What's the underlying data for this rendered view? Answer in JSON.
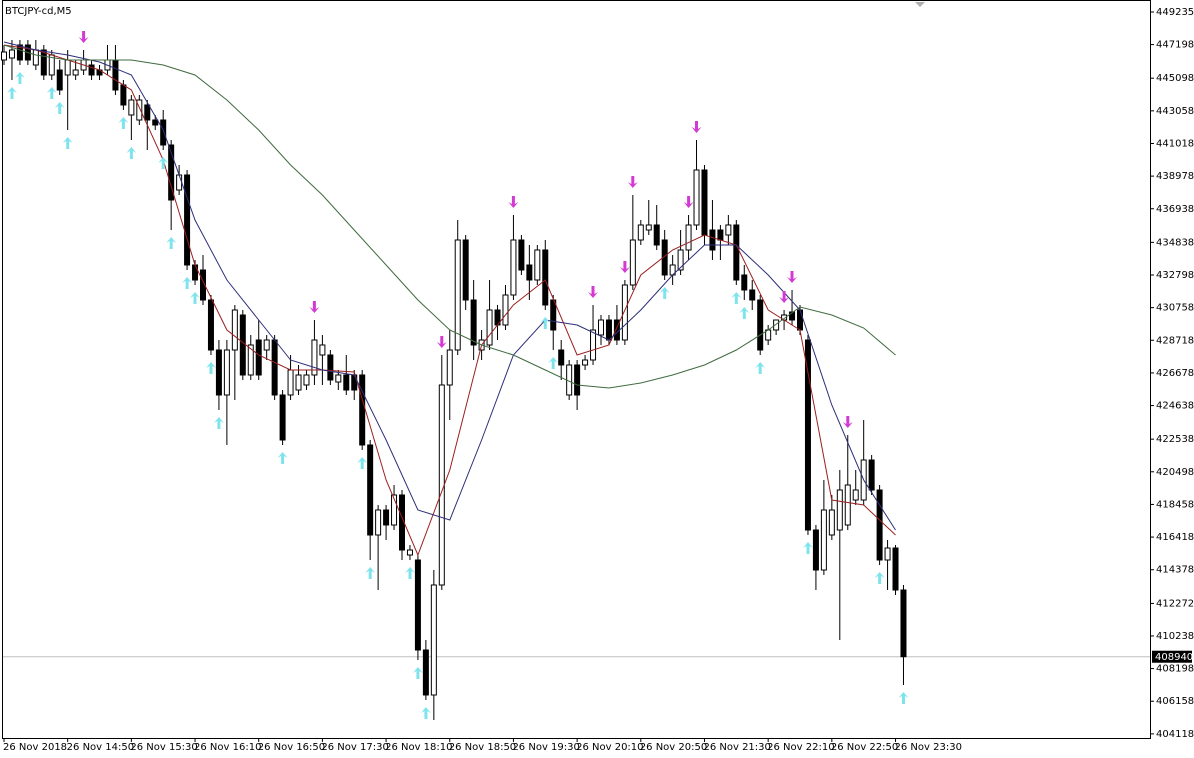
{
  "chart_data": {
    "type": "candlestick",
    "title": "BTCJPY-cd,M5",
    "categories": [
      "26 Nov 2018",
      null,
      null,
      null,
      null,
      null,
      null,
      null,
      "26 Nov 14:50",
      null,
      null,
      null,
      null,
      null,
      null,
      null,
      "26 Nov 15:30",
      null,
      null,
      null,
      null,
      null,
      null,
      null,
      "26 Nov 16:10",
      null,
      null,
      null,
      null,
      null,
      null,
      null,
      "26 Nov 16:50",
      null,
      null,
      null,
      null,
      null,
      null,
      null,
      "26 Nov 17:30",
      null,
      null,
      null,
      null,
      null,
      null,
      null,
      "26 Nov 18:10",
      null,
      null,
      null,
      null,
      null,
      null,
      null,
      "26 Nov 18:50",
      null,
      null,
      null,
      null,
      null,
      null,
      null,
      "26 Nov 19:30",
      null,
      null,
      null,
      null,
      null,
      null,
      null,
      "26 Nov 20:10",
      null,
      null,
      null,
      null,
      null,
      null,
      null,
      "26 Nov 20:50",
      null,
      null,
      null,
      null,
      null,
      null,
      null,
      "26 Nov 21:30",
      null,
      null,
      null,
      null,
      null,
      null,
      null,
      "26 Nov 22:10",
      null,
      null,
      null,
      null,
      null,
      null,
      null,
      "26 Nov 22:50",
      null,
      null,
      null,
      null,
      null,
      null,
      null,
      "26 Nov 23:30",
      null
    ],
    "open": [
      446235,
      446360,
      447173,
      447173,
      445923,
      446860,
      445298,
      445610,
      445298,
      445298,
      445610,
      445923,
      445610,
      445610,
      446235,
      444673,
      442798,
      442485,
      443423,
      442485,
      442485,
      440923,
      438110,
      439048,
      433423,
      433110,
      431235,
      428110,
      425298,
      428110,
      430298,
      426548,
      428735,
      428110,
      428735,
      425298,
      425298,
      425610,
      425923,
      426548,
      427798,
      427798,
      426110,
      426548,
      426548,
      426548,
      422173,
      416548,
      418110,
      417173,
      419048,
      415298,
      414985,
      409360,
      406548,
      413423,
      425923,
      428110,
      434985,
      431235,
      428110,
      428423,
      430610,
      429673,
      431548,
      434985,
      433423,
      432485,
      434360,
      431235,
      428110,
      425298,
      427173,
      427173,
      427485,
      429048,
      429985,
      429985,
      428735,
      432173,
      434985,
      435610,
      435923,
      434985,
      432798,
      433110,
      434360,
      435923,
      439360,
      435610,
      435610,
      435298,
      435923,
      432798,
      431860,
      431235,
      428735,
      429360,
      429985,
      430485,
      430610,
      428735,
      416860,
      414360,
      416548,
      416860,
      417173,
      418735,
      418735,
      421235,
      419360,
      414985,
      415735,
      413110
    ],
    "high": [
      447173,
      447485,
      447485,
      447485,
      447485,
      447173,
      446860,
      446235,
      446860,
      446235,
      446860,
      446235,
      445923,
      447173,
      447173,
      444985,
      444048,
      444048,
      443735,
      442798,
      443110,
      441235,
      439673,
      439360,
      433735,
      434048,
      431548,
      428735,
      428735,
      430923,
      430610,
      429048,
      429985,
      429048,
      429048,
      425610,
      427798,
      427173,
      426860,
      429985,
      429048,
      428110,
      426860,
      427798,
      426860,
      426860,
      422485,
      418423,
      418423,
      419673,
      419360,
      415923,
      415298,
      409985,
      414360,
      427798,
      429360,
      436235,
      435298,
      432485,
      429360,
      432485,
      430923,
      432173,
      436548,
      435298,
      434673,
      434673,
      434985,
      431548,
      428735,
      427485,
      427485,
      427798,
      430923,
      430298,
      430298,
      430923,
      432485,
      437798,
      436235,
      437485,
      437173,
      435610,
      434048,
      435610,
      436548,
      441235,
      439673,
      437485,
      435923,
      436548,
      436235,
      433423,
      432485,
      431548,
      429673,
      429985,
      430610,
      431860,
      430923,
      429048,
      417173,
      419985,
      419048,
      420610,
      422798,
      420610,
      423735,
      421548,
      419673,
      416235,
      415923,
      413423
    ],
    "low": [
      445923,
      444985,
      445923,
      445923,
      445610,
      444985,
      444985,
      444048,
      441860,
      444985,
      445298,
      444985,
      444985,
      445298,
      444048,
      443110,
      441235,
      442173,
      440610,
      441860,
      440610,
      435610,
      437798,
      433110,
      432173,
      430923,
      427798,
      424360,
      422173,
      424985,
      426235,
      426235,
      426235,
      427485,
      424985,
      422173,
      424985,
      425298,
      425610,
      425923,
      425923,
      425923,
      425610,
      425298,
      424985,
      421860,
      414985,
      413110,
      416235,
      416860,
      414985,
      414985,
      408735,
      406235,
      404985,
      413110,
      423735,
      427798,
      430610,
      427485,
      427485,
      428110,
      428735,
      429360,
      431235,
      432798,
      431235,
      432173,
      430610,
      428110,
      426235,
      424985,
      424360,
      426860,
      427173,
      428423,
      428423,
      428423,
      428423,
      431860,
      434673,
      435298,
      434360,
      432485,
      432173,
      432798,
      433735,
      435610,
      434673,
      433735,
      433735,
      434673,
      432173,
      431235,
      430610,
      427798,
      428423,
      429048,
      429360,
      429673,
      429048,
      416548,
      413110,
      414048,
      416235,
      409985,
      416860,
      418423,
      418423,
      419048,
      414673,
      413110,
      412798,
      407173
    ],
    "close": [
      446735,
      446860,
      446235,
      446235,
      446860,
      445298,
      446548,
      444360,
      446235,
      445610,
      446235,
      445298,
      445298,
      446235,
      444360,
      443423,
      443735,
      443735,
      442485,
      442173,
      440923,
      437485,
      439048,
      433423,
      432485,
      431235,
      428110,
      425298,
      428110,
      430610,
      426548,
      428423,
      426548,
      428735,
      425298,
      422485,
      426860,
      426548,
      426548,
      428735,
      428423,
      426235,
      426548,
      425610,
      425610,
      422173,
      416548,
      418110,
      417173,
      419048,
      415610,
      415610,
      409360,
      406548,
      413423,
      425923,
      428110,
      434985,
      431235,
      428423,
      428735,
      430610,
      429673,
      431548,
      434985,
      433110,
      432485,
      434360,
      430923,
      429360,
      427173,
      427173,
      425298,
      427485,
      429360,
      429985,
      428735,
      428735,
      432173,
      434985,
      435923,
      435923,
      434673,
      432798,
      433423,
      434360,
      435923,
      439360,
      435298,
      434360,
      434985,
      435923,
      432485,
      431860,
      431235,
      428110,
      429360,
      429985,
      430298,
      429985,
      429360,
      416860,
      414360,
      418110,
      418110,
      419360,
      419673,
      419360,
      421235,
      419360,
      414985,
      415735,
      413110,
      408940
    ],
    "up_color": "#ffffff",
    "down_color": "#000000",
    "overlays": [
      {
        "type": "line",
        "color": "#9b2020",
        "x": [
          0,
          4,
          8,
          12,
          16,
          20,
          24,
          28,
          32,
          36,
          40,
          44,
          48,
          52,
          56,
          60,
          64,
          68,
          72,
          76,
          80,
          84,
          88,
          92,
          96,
          100,
          104,
          108,
          112
        ],
        "values": [
          447173,
          446860,
          446235,
          445610,
          444360,
          439985,
          433423,
          429360,
          427798,
          426860,
          426860,
          426735,
          419985,
          415298,
          420610,
          428423,
          430923,
          432485,
          427798,
          428423,
          432798,
          434360,
          435298,
          434673,
          430610,
          429360,
          418735,
          418423,
          416548
        ]
      },
      {
        "type": "line",
        "color": "#2e2e7a",
        "x": [
          0,
          4,
          8,
          12,
          16,
          20,
          24,
          28,
          32,
          36,
          40,
          44,
          48,
          52,
          56,
          60,
          64,
          68,
          72,
          76,
          80,
          84,
          88,
          92,
          96,
          100,
          104,
          108,
          112
        ],
        "values": [
          447360,
          446860,
          446548,
          446110,
          445298,
          441860,
          436235,
          432485,
          429985,
          427485,
          426860,
          426548,
          422485,
          418110,
          417485,
          422485,
          427798,
          429985,
          429673,
          428735,
          430610,
          432798,
          434673,
          434673,
          432798,
          430610,
          424673,
          419985,
          416860
        ]
      },
      {
        "type": "line",
        "color": "#3f6b3f",
        "x": [
          0,
          4,
          8,
          12,
          16,
          20,
          24,
          28,
          32,
          36,
          40,
          44,
          48,
          52,
          56,
          60,
          64,
          68,
          72,
          76,
          80,
          84,
          88,
          92,
          96,
          100,
          104,
          108,
          112
        ],
        "values": [
          447173,
          446548,
          446235,
          446235,
          446235,
          445923,
          445298,
          443735,
          441860,
          439673,
          437798,
          435610,
          433423,
          431235,
          429360,
          428423,
          427798,
          426860,
          425923,
          425735,
          426048,
          426548,
          427173,
          428110,
          429360,
          430798,
          430298,
          429485,
          427798
        ]
      }
    ],
    "up_arrows": {
      "color": "#7fe3ec",
      "x": [
        1,
        2,
        6,
        7,
        8,
        15,
        16,
        20,
        21,
        23,
        24,
        26,
        27,
        35,
        45,
        46,
        51,
        52,
        53,
        68,
        69,
        83,
        92,
        93,
        95,
        101,
        110,
        113
      ]
    },
    "down_arrows": {
      "color": "#d33ad3",
      "x": [
        10,
        39,
        55,
        64,
        74,
        78,
        79,
        86,
        87,
        98,
        99,
        106
      ]
    },
    "last_price": 408940,
    "ylim": [
      403860,
      449985
    ],
    "yticks": [
      449235,
      447198,
      445098,
      443058,
      441018,
      438978,
      436938,
      434838,
      432798,
      430758,
      428718,
      426678,
      424638,
      422538,
      420498,
      418458,
      416418,
      414378,
      412272,
      410238,
      408198,
      406158,
      404118
    ]
  }
}
